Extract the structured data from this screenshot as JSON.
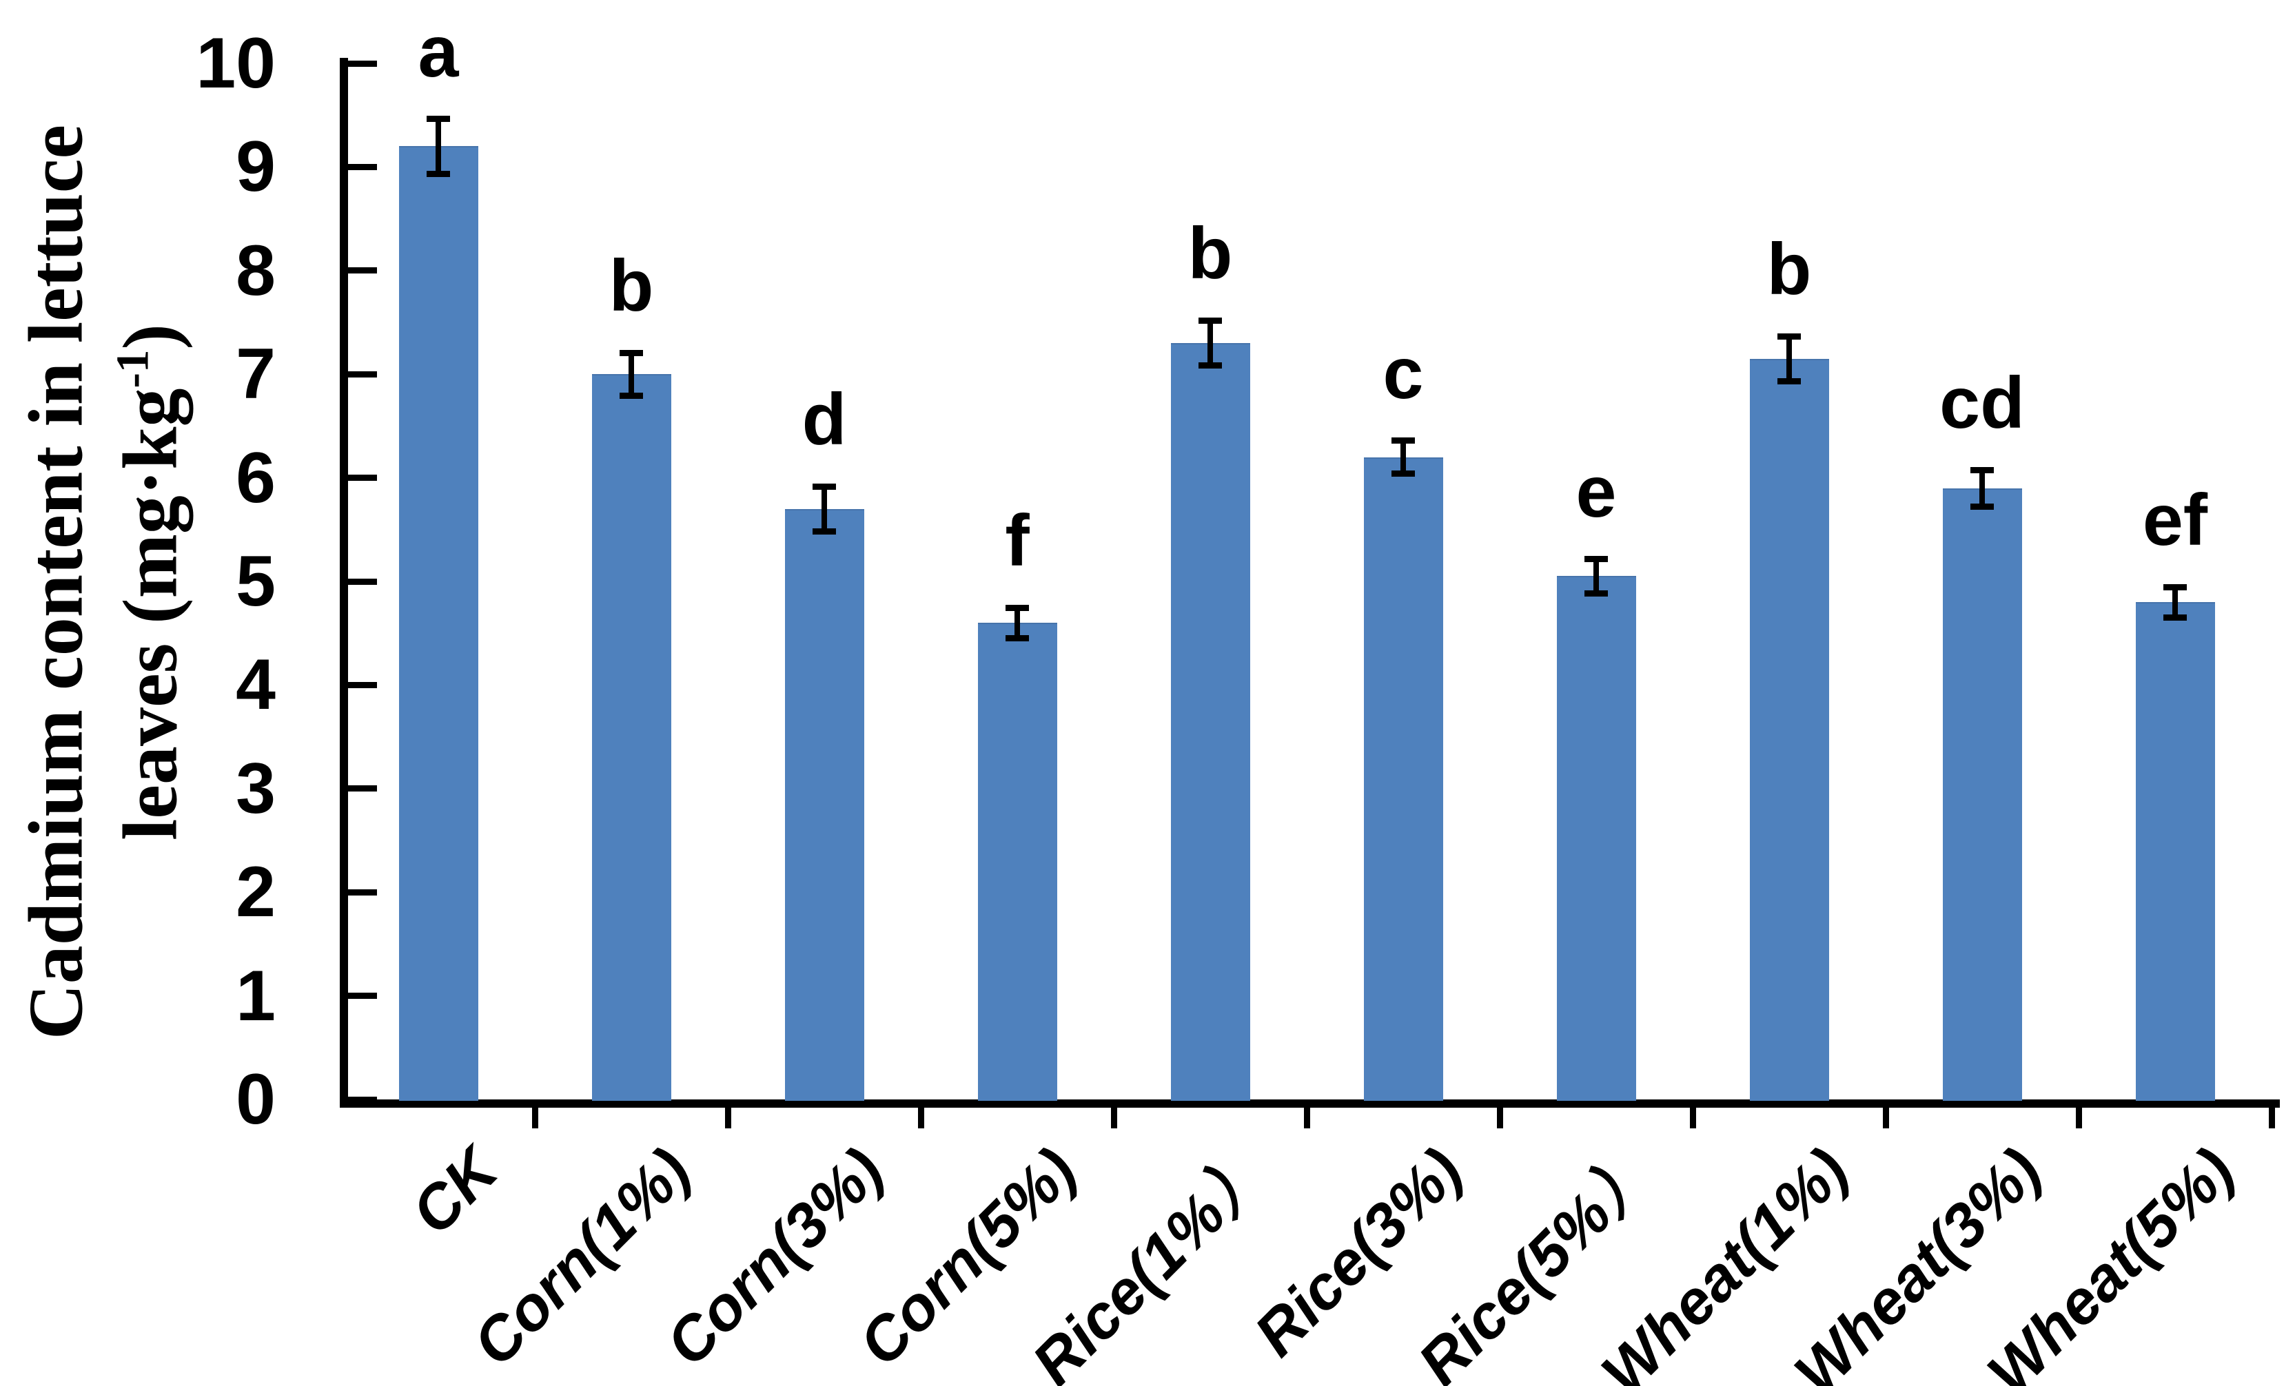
{
  "chart_data": {
    "type": "bar",
    "title": "",
    "ylabel_line1": "Cadmium content in lettuce",
    "ylabel_line2_pre": "leaves (mg·kg",
    "ylabel_sup": "-1",
    "ylabel_line2_post": ")",
    "xlabel": "",
    "categories": [
      "CK",
      "Corn(1%)",
      "Corn(3%)",
      "Corn(5%)",
      "Rice(1%）",
      "Rice(3%)",
      "Rice(5%）",
      "Wheat(1%)",
      "Wheat(3%)",
      "Wheat(5%)"
    ],
    "values": [
      9.2,
      7.0,
      5.7,
      4.6,
      7.3,
      6.2,
      5.05,
      7.15,
      5.9,
      4.8
    ],
    "errors": [
      0.27,
      0.21,
      0.22,
      0.15,
      0.22,
      0.16,
      0.17,
      0.22,
      0.18,
      0.15
    ],
    "sig_letters": [
      "a",
      "b",
      "d",
      "f",
      "b",
      "c",
      "e",
      "b",
      "cd",
      "ef"
    ],
    "yticks": [
      "0",
      "1",
      "2",
      "3",
      "4",
      "5",
      "6",
      "7",
      "8",
      "9",
      "10"
    ],
    "ylim": [
      0,
      10
    ],
    "grid": false,
    "legend_position": "none",
    "bar_color": "#4f81bd",
    "axis_color": "#000000",
    "error_bar_color": "#000000",
    "background_color": "#ffffff"
  }
}
